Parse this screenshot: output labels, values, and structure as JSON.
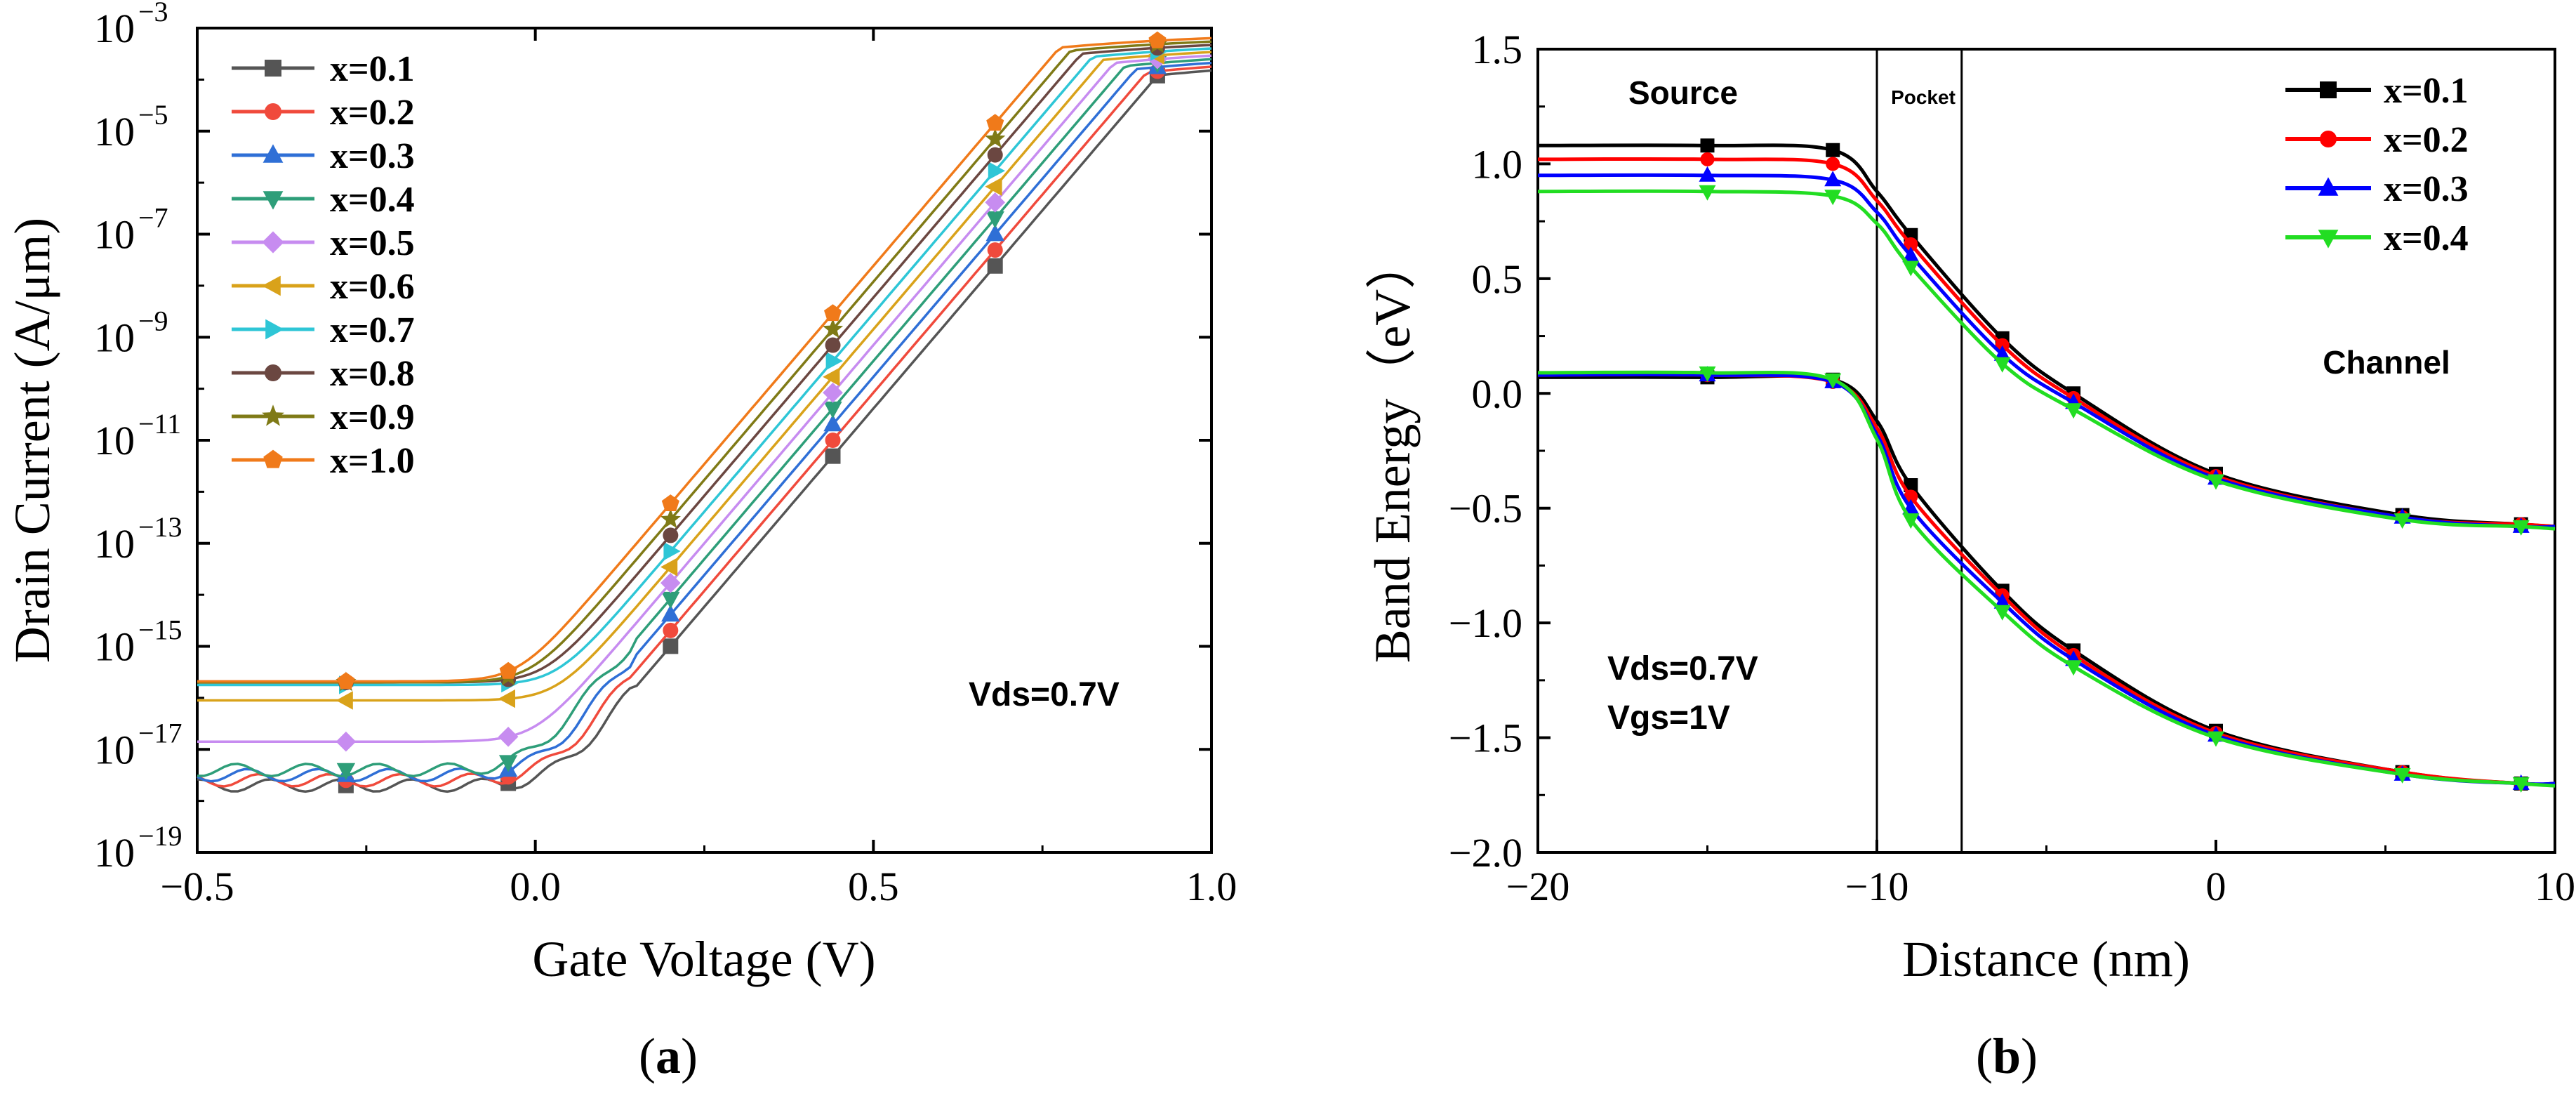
{
  "chart_data": [
    {
      "id": "a",
      "type": "line",
      "scale": "log-y",
      "caption_letter": "a",
      "xlabel": "Gate Voltage (V)",
      "ylabel": "Drain Current (A/μm)",
      "xlim": [
        -0.5,
        1.0
      ],
      "ylim_exp": [
        -19,
        -3
      ],
      "x_ticks": [
        -0.5,
        0.0,
        0.5,
        1.0
      ],
      "x_tick_labels": [
        "−0.5",
        "0.0",
        "0.5",
        "1.0"
      ],
      "y_tick_exps": [
        -19,
        -17,
        -15,
        -13,
        -11,
        -9,
        -7,
        -5,
        -3
      ],
      "y_tick_labels": [
        "10",
        "10",
        "10",
        "10",
        "10",
        "10",
        "10",
        "10",
        "10"
      ],
      "y_tick_sups": [
        "−19",
        "−17",
        "−15",
        "−13",
        "−11",
        "−9",
        "−7",
        "−5",
        "−3"
      ],
      "annotation": "Vds=0.7V",
      "marker_x": [
        -0.28,
        -0.04,
        0.2,
        0.44,
        0.68,
        0.92
      ],
      "series": [
        {
          "name": "x=0.1",
          "color": "#555555",
          "marker": "square",
          "off_level": -17.7,
          "shift": 0.0
        },
        {
          "name": "x=0.2",
          "color": "#f04a3c",
          "marker": "circle",
          "off_level": -17.6,
          "shift": 0.02
        },
        {
          "name": "x=0.3",
          "color": "#2f6fd6",
          "marker": "triangle-up",
          "off_level": -17.5,
          "shift": 0.04
        },
        {
          "name": "x=0.4",
          "color": "#2e9e79",
          "marker": "triangle-down",
          "off_level": -17.4,
          "shift": 0.06
        },
        {
          "name": "x=0.5",
          "color": "#c78cf0",
          "marker": "diamond",
          "off_level": -16.85,
          "shift": 0.08
        },
        {
          "name": "x=0.6",
          "color": "#d9a21a",
          "marker": "triangle-left",
          "off_level": -16.05,
          "shift": 0.1
        },
        {
          "name": "x=0.7",
          "color": "#2ec6d6",
          "marker": "triangle-right",
          "off_level": -15.75,
          "shift": 0.12
        },
        {
          "name": "x=0.8",
          "color": "#6b4741",
          "marker": "circle",
          "off_level": -15.7,
          "shift": 0.14
        },
        {
          "name": "x=0.9",
          "color": "#7f7a16",
          "marker": "star",
          "off_level": -15.7,
          "shift": 0.16
        },
        {
          "name": "x=1.0",
          "color": "#f07a1a",
          "marker": "pentagon",
          "off_level": -15.68,
          "shift": 0.18
        }
      ]
    },
    {
      "id": "b",
      "type": "line",
      "caption_letter": "b",
      "xlabel": "Distance (nm)",
      "ylabel": "Band Energy（eV）",
      "xlim": [
        -20,
        10
      ],
      "ylim": [
        -2.0,
        1.5
      ],
      "x_ticks": [
        -20,
        -10,
        0,
        10
      ],
      "x_tick_labels": [
        "−20",
        "−10",
        "0",
        "10"
      ],
      "y_ticks": [
        -2.0,
        -1.5,
        -1.0,
        -0.5,
        0.0,
        0.5,
        1.0,
        1.5
      ],
      "y_tick_labels": [
        "−2.0",
        "−1.5",
        "−1.0",
        "−0.5",
        "0.0",
        "0.5",
        "1.0",
        "1.5"
      ],
      "vlines": [
        -10,
        -7.5
      ],
      "region_labels": {
        "source": "Source",
        "pocket": "Pocket",
        "channel": "Channel"
      },
      "annotations": [
        "Vds=0.7V",
        "Vgs=1V"
      ],
      "marker_x": [
        -15,
        -11.3,
        -9,
        -6.3,
        -4.2,
        0,
        5.5,
        9
      ],
      "series": [
        {
          "name": "x=0.1",
          "color": "#000000",
          "marker": "square",
          "conduction": [
            [
              -20,
              1.08
            ],
            [
              -15,
              1.08
            ],
            [
              -11.3,
              1.06
            ],
            [
              -10,
              0.88
            ],
            [
              -9,
              0.69
            ],
            [
              -6.3,
              0.24
            ],
            [
              -4.2,
              0.0
            ],
            [
              0,
              -0.35
            ],
            [
              5.5,
              -0.53
            ],
            [
              9,
              -0.57
            ],
            [
              10,
              -0.58
            ]
          ],
          "valence": [
            [
              -20,
              0.07
            ],
            [
              -15,
              0.07
            ],
            [
              -11.3,
              0.06
            ],
            [
              -10,
              -0.12
            ],
            [
              -9,
              -0.4
            ],
            [
              -6.3,
              -0.86
            ],
            [
              -4.2,
              -1.12
            ],
            [
              0,
              -1.47
            ],
            [
              5.5,
              -1.65
            ],
            [
              9,
              -1.7
            ],
            [
              10,
              -1.7
            ]
          ]
        },
        {
          "name": "x=0.2",
          "color": "#ff0000",
          "marker": "circle",
          "conduction": [
            [
              -20,
              1.02
            ],
            [
              -15,
              1.02
            ],
            [
              -11.3,
              1.0
            ],
            [
              -10,
              0.84
            ],
            [
              -9,
              0.65
            ],
            [
              -6.3,
              0.21
            ],
            [
              -4.2,
              -0.02
            ],
            [
              0,
              -0.36
            ],
            [
              5.5,
              -0.54
            ],
            [
              9,
              -0.57
            ],
            [
              10,
              -0.58
            ]
          ],
          "valence": [
            [
              -20,
              0.08
            ],
            [
              -15,
              0.08
            ],
            [
              -11.3,
              0.05
            ],
            [
              -10,
              -0.15
            ],
            [
              -9,
              -0.45
            ],
            [
              -6.3,
              -0.88
            ],
            [
              -4.2,
              -1.14
            ],
            [
              0,
              -1.48
            ],
            [
              5.5,
              -1.65
            ],
            [
              9,
              -1.7
            ],
            [
              10,
              -1.7
            ]
          ]
        },
        {
          "name": "x=0.3",
          "color": "#0000ff",
          "marker": "triangle-up",
          "conduction": [
            [
              -20,
              0.95
            ],
            [
              -15,
              0.95
            ],
            [
              -11.3,
              0.93
            ],
            [
              -10,
              0.79
            ],
            [
              -9,
              0.6
            ],
            [
              -6.3,
              0.17
            ],
            [
              -4.2,
              -0.04
            ],
            [
              0,
              -0.37
            ],
            [
              5.5,
              -0.54
            ],
            [
              9,
              -0.58
            ],
            [
              10,
              -0.58
            ]
          ],
          "valence": [
            [
              -20,
              0.08
            ],
            [
              -15,
              0.08
            ],
            [
              -11.3,
              0.05
            ],
            [
              -10,
              -0.18
            ],
            [
              -9,
              -0.5
            ],
            [
              -6.3,
              -0.91
            ],
            [
              -4.2,
              -1.16
            ],
            [
              0,
              -1.49
            ],
            [
              5.5,
              -1.66
            ],
            [
              9,
              -1.7
            ],
            [
              10,
              -1.7
            ]
          ]
        },
        {
          "name": "x=0.4",
          "color": "#22dd22",
          "marker": "triangle-down",
          "conduction": [
            [
              -20,
              0.88
            ],
            [
              -15,
              0.88
            ],
            [
              -11.3,
              0.86
            ],
            [
              -10,
              0.74
            ],
            [
              -9,
              0.55
            ],
            [
              -6.3,
              0.13
            ],
            [
              -4.2,
              -0.07
            ],
            [
              0,
              -0.38
            ],
            [
              5.5,
              -0.55
            ],
            [
              9,
              -0.58
            ],
            [
              10,
              -0.59
            ]
          ],
          "valence": [
            [
              -20,
              0.09
            ],
            [
              -15,
              0.09
            ],
            [
              -11.3,
              0.06
            ],
            [
              -10,
              -0.2
            ],
            [
              -9,
              -0.55
            ],
            [
              -6.3,
              -0.95
            ],
            [
              -4.2,
              -1.19
            ],
            [
              0,
              -1.5
            ],
            [
              5.5,
              -1.66
            ],
            [
              9,
              -1.7
            ],
            [
              10,
              -1.71
            ]
          ]
        }
      ]
    }
  ]
}
